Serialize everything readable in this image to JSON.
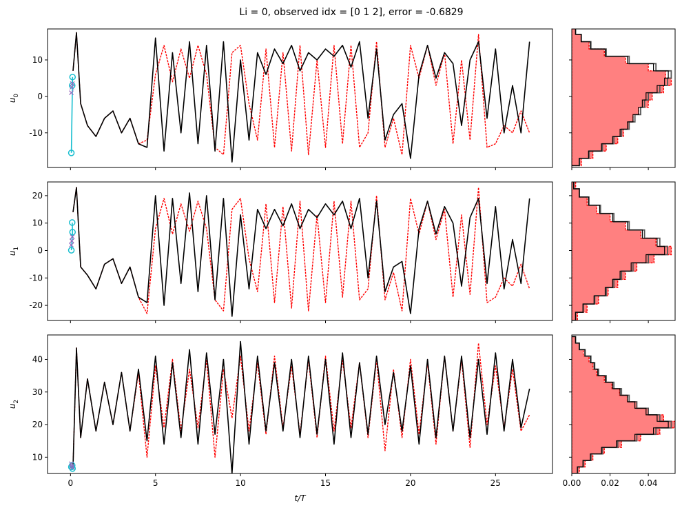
{
  "figure": {
    "title": "Li = 0, observed idx = [0 1 2], error = -0.6829"
  },
  "colors": {
    "truth": "#000000",
    "forecast": "#ff0000",
    "observed": "#17becf",
    "hist_fill": "#ff8080",
    "hist_truth": "#555555"
  },
  "chart_data": [
    {
      "type": "line",
      "ylabel": "u_0",
      "xlabel": "",
      "xlim": [
        -1.35,
        28.35
      ],
      "ylim": [
        -19.5,
        18.5
      ],
      "xticks": [
        0,
        5,
        10,
        15,
        20,
        25
      ],
      "xtick_labels": [
        "",
        "",
        "",
        "",
        "",
        ""
      ],
      "yticks": [
        -10,
        0,
        10
      ],
      "ytick_labels": [
        "-10",
        "0",
        "10"
      ],
      "observed_circles": [
        [
          0.05,
          -15.5
        ],
        [
          0.12,
          5.3
        ],
        [
          0.1,
          3.0
        ]
      ],
      "observed_crosses": [
        [
          0.05,
          1.0
        ],
        [
          0.08,
          2.5
        ],
        [
          0.11,
          3.5
        ]
      ],
      "series": [
        {
          "role": "truth",
          "style": "solid",
          "x": [
            0.15,
            0.35,
            0.6,
            1.0,
            1.5,
            2.0,
            2.5,
            3.0,
            3.5,
            4.0,
            4.5,
            5.0,
            5.5,
            6.0,
            6.5,
            7.0,
            7.5,
            8.0,
            8.5,
            9.0,
            9.5,
            10.0,
            10.5,
            11.0,
            11.5,
            12.0,
            12.5,
            13.0,
            13.5,
            14.0,
            14.5,
            15.0,
            15.5,
            16.0,
            16.5,
            17.0,
            17.5,
            18.0,
            18.5,
            19.0,
            19.5,
            20.0,
            20.5,
            21.0,
            21.5,
            22.0,
            22.5,
            23.0,
            23.5,
            24.0,
            24.5,
            25.0,
            25.5,
            26.0,
            26.5,
            27.0
          ],
          "y": [
            7,
            17.5,
            -2,
            -8,
            -11,
            -6,
            -4,
            -10,
            -6,
            -13,
            -14,
            16,
            -15,
            12,
            -10,
            15,
            -13,
            14,
            -15,
            15,
            -18,
            10,
            -12,
            12,
            6,
            13,
            9,
            14,
            7,
            12,
            10,
            13,
            11,
            14,
            8,
            15,
            -6,
            13,
            -12,
            -5,
            -2,
            -17,
            6,
            14,
            5,
            12,
            9,
            -8,
            10,
            15,
            -6,
            13,
            -10,
            3,
            -10,
            15
          ]
        },
        {
          "role": "forecast",
          "style": "dashed",
          "x": [
            0.15,
            0.35,
            0.6,
            1.0,
            1.5,
            2.0,
            2.5,
            3.0,
            3.5,
            4.0,
            4.5,
            5.0,
            5.5,
            6.0,
            6.5,
            7.0,
            7.5,
            8.0,
            8.5,
            9.0,
            9.5,
            10.0,
            10.5,
            11.0,
            11.5,
            12.0,
            12.5,
            13.0,
            13.5,
            14.0,
            14.5,
            15.0,
            15.5,
            16.0,
            16.5,
            17.0,
            17.5,
            18.0,
            18.5,
            19.0,
            19.5,
            20.0,
            20.5,
            21.0,
            21.5,
            22.0,
            22.5,
            23.0,
            23.5,
            24.0,
            24.5,
            25.0,
            25.5,
            26.0,
            26.5,
            27.0
          ],
          "y": [
            7,
            17.5,
            -2,
            -8,
            -11,
            -6,
            -4,
            -10,
            -6,
            -13,
            -12,
            6,
            14,
            4,
            13,
            5,
            14,
            6,
            -14,
            -16,
            12,
            14,
            -2,
            -12,
            13,
            -14,
            12,
            -15,
            14,
            -16,
            10,
            -14,
            14,
            -13,
            14,
            -14,
            -10,
            15,
            -14,
            -6,
            -16,
            14,
            5,
            14,
            3,
            12,
            -13,
            10,
            -12,
            17,
            -14,
            -13,
            -8,
            -10,
            -4,
            -10
          ]
        }
      ],
      "hist": {
        "xlim": [
          0,
          0.054
        ],
        "xticks": [
          0.0,
          0.02,
          0.04
        ],
        "xtick_labels": [
          "",
          "",
          ""
        ],
        "bins_center": [
          -18,
          -16,
          -14,
          -12,
          -10,
          -8,
          -6,
          -4,
          -2,
          0,
          2,
          4,
          6,
          8,
          10,
          12,
          14,
          16,
          18
        ],
        "truth": [
          0.004,
          0.009,
          0.016,
          0.022,
          0.026,
          0.03,
          0.033,
          0.036,
          0.038,
          0.04,
          0.046,
          0.05,
          0.052,
          0.044,
          0.03,
          0.018,
          0.01,
          0.005,
          0.002
        ],
        "forecast": [
          0.005,
          0.011,
          0.018,
          0.024,
          0.027,
          0.03,
          0.032,
          0.035,
          0.04,
          0.042,
          0.048,
          0.052,
          0.049,
          0.04,
          0.028,
          0.017,
          0.009,
          0.005,
          0.002
        ]
      }
    },
    {
      "type": "line",
      "ylabel": "u_1",
      "xlabel": "",
      "xlim": [
        -1.35,
        28.35
      ],
      "ylim": [
        -25.5,
        25
      ],
      "xticks": [
        0,
        5,
        10,
        15,
        20,
        25
      ],
      "xtick_labels": [
        "",
        "",
        "",
        "",
        "",
        ""
      ],
      "yticks": [
        -20,
        -10,
        0,
        10,
        20
      ],
      "ytick_labels": [
        "-20",
        "-10",
        "0",
        "10",
        "20"
      ],
      "observed_circles": [
        [
          0.1,
          10.2
        ],
        [
          0.12,
          6.7
        ],
        [
          0.05,
          0.1
        ]
      ],
      "observed_crosses": [
        [
          0.05,
          2.0
        ],
        [
          0.08,
          3.5
        ],
        [
          0.11,
          5.0
        ]
      ],
      "series": [
        {
          "role": "truth",
          "style": "solid",
          "x": [
            0.15,
            0.35,
            0.6,
            1.0,
            1.5,
            2.0,
            2.5,
            3.0,
            3.5,
            4.0,
            4.5,
            5.0,
            5.5,
            6.0,
            6.5,
            7.0,
            7.5,
            8.0,
            8.5,
            9.0,
            9.5,
            10.0,
            10.5,
            11.0,
            11.5,
            12.0,
            12.5,
            13.0,
            13.5,
            14.0,
            14.5,
            15.0,
            15.5,
            16.0,
            16.5,
            17.0,
            17.5,
            18.0,
            18.5,
            19.0,
            19.5,
            20.0,
            20.5,
            21.0,
            21.5,
            22.0,
            22.5,
            23.0,
            23.5,
            24.0,
            24.5,
            25.0,
            25.5,
            26.0,
            26.5,
            27.0
          ],
          "y": [
            14,
            23,
            -6,
            -9,
            -14,
            -5,
            -3,
            -12,
            -6,
            -17,
            -19,
            20,
            -20,
            19,
            -12,
            21,
            -15,
            20,
            -18,
            19,
            -24,
            13,
            -14,
            15,
            8,
            15,
            9,
            17,
            8,
            15,
            12,
            17,
            13,
            18,
            8,
            19,
            -10,
            18,
            -15,
            -6,
            -4,
            -23,
            8,
            18,
            6,
            16,
            10,
            -13,
            12,
            19,
            -12,
            16,
            -14,
            4,
            -12,
            19
          ]
        },
        {
          "role": "forecast",
          "style": "dashed",
          "x": [
            0.15,
            0.35,
            0.6,
            1.0,
            1.5,
            2.0,
            2.5,
            3.0,
            3.5,
            4.0,
            4.5,
            5.0,
            5.5,
            6.0,
            6.5,
            7.0,
            7.5,
            8.0,
            8.5,
            9.0,
            9.5,
            10.0,
            10.5,
            11.0,
            11.5,
            12.0,
            12.5,
            13.0,
            13.5,
            14.0,
            14.5,
            15.0,
            15.5,
            16.0,
            16.5,
            17.0,
            17.5,
            18.0,
            18.5,
            19.0,
            19.5,
            20.0,
            20.5,
            21.0,
            21.5,
            22.0,
            22.5,
            23.0,
            23.5,
            24.0,
            24.5,
            25.0,
            25.5,
            26.0,
            26.5,
            27.0
          ],
          "y": [
            14,
            23,
            -6,
            -9,
            -14,
            -5,
            -3,
            -12,
            -6,
            -17,
            -23,
            8,
            19,
            6,
            17,
            7,
            18,
            8,
            -18,
            -22,
            15,
            19,
            -3,
            -15,
            17,
            -19,
            16,
            -21,
            18,
            -22,
            13,
            -19,
            18,
            -17,
            18,
            -18,
            -14,
            20,
            -18,
            -8,
            -22,
            19,
            6,
            18,
            4,
            15,
            -17,
            13,
            -16,
            23,
            -19,
            -17,
            -10,
            -13,
            -5,
            -14
          ]
        }
      ],
      "hist": {
        "xlim": [
          0,
          0.054
        ],
        "xticks": [
          0.0,
          0.02,
          0.04
        ],
        "xtick_labels": [
          "",
          "",
          ""
        ],
        "bins_center": [
          -24,
          -21,
          -18,
          -15,
          -12,
          -9,
          -6,
          -3,
          0,
          3,
          6,
          9,
          12,
          15,
          18,
          21,
          24
        ],
        "truth": [
          0.002,
          0.006,
          0.012,
          0.018,
          0.022,
          0.026,
          0.032,
          0.04,
          0.05,
          0.046,
          0.038,
          0.03,
          0.022,
          0.015,
          0.009,
          0.004,
          0.001
        ],
        "forecast": [
          0.003,
          0.008,
          0.014,
          0.019,
          0.024,
          0.028,
          0.034,
          0.043,
          0.052,
          0.044,
          0.036,
          0.028,
          0.02,
          0.013,
          0.008,
          0.004,
          0.002
        ]
      }
    },
    {
      "type": "line",
      "ylabel": "u_2",
      "xlabel": "t/T",
      "xlim": [
        -1.35,
        28.35
      ],
      "ylim": [
        5,
        47.5
      ],
      "xticks": [
        0,
        5,
        10,
        15,
        20,
        25
      ],
      "xtick_labels": [
        "0",
        "5",
        "10",
        "15",
        "20",
        "25"
      ],
      "yticks": [
        10,
        20,
        30,
        40
      ],
      "ytick_labels": [
        "10",
        "20",
        "30",
        "40"
      ],
      "observed_circles": [
        [
          0.05,
          7.0
        ],
        [
          0.12,
          6.5
        ],
        [
          0.1,
          7.5
        ]
      ],
      "observed_crosses": [
        [
          0.05,
          8.0
        ],
        [
          0.08,
          7.2
        ],
        [
          0.11,
          6.8
        ]
      ],
      "series": [
        {
          "role": "truth",
          "style": "solid",
          "x": [
            0.15,
            0.35,
            0.6,
            1.0,
            1.5,
            2.0,
            2.5,
            3.0,
            3.5,
            4.0,
            4.5,
            5.0,
            5.5,
            6.0,
            6.5,
            7.0,
            7.5,
            8.0,
            8.5,
            9.0,
            9.5,
            10.0,
            10.5,
            11.0,
            11.5,
            12.0,
            12.5,
            13.0,
            13.5,
            14.0,
            14.5,
            15.0,
            15.5,
            16.0,
            16.5,
            17.0,
            17.5,
            18.0,
            18.5,
            19.0,
            19.5,
            20.0,
            20.5,
            21.0,
            21.5,
            22.0,
            22.5,
            23.0,
            23.5,
            24.0,
            24.5,
            25.0,
            25.5,
            26.0,
            26.5,
            27.0
          ],
          "y": [
            7,
            43.5,
            16,
            34,
            18,
            33,
            20,
            36,
            18,
            37,
            15,
            41,
            14,
            39,
            16,
            43,
            14,
            42,
            17,
            40,
            5,
            45.5,
            14,
            41,
            18,
            39,
            18,
            40,
            16,
            41,
            17,
            40,
            14,
            42,
            16,
            39,
            17,
            41,
            20,
            36,
            18,
            38,
            14,
            40,
            16,
            41,
            18,
            41,
            16,
            40,
            17,
            42,
            18,
            40,
            19,
            31
          ]
        },
        {
          "role": "forecast",
          "style": "dashed",
          "x": [
            0.15,
            0.35,
            0.6,
            1.0,
            1.5,
            2.0,
            2.5,
            3.0,
            3.5,
            4.0,
            4.5,
            5.0,
            5.5,
            6.0,
            6.5,
            7.0,
            7.5,
            8.0,
            8.5,
            9.0,
            9.5,
            10.0,
            10.5,
            11.0,
            11.5,
            12.0,
            12.5,
            13.0,
            13.5,
            14.0,
            14.5,
            15.0,
            15.5,
            16.0,
            16.5,
            17.0,
            17.5,
            18.0,
            18.5,
            19.0,
            19.5,
            20.0,
            20.5,
            21.0,
            21.5,
            22.0,
            22.5,
            23.0,
            23.5,
            24.0,
            24.5,
            25.0,
            25.5,
            26.0,
            26.5,
            27.0
          ],
          "y": [
            7,
            43.5,
            16,
            34,
            18,
            33,
            20,
            36,
            18,
            36,
            10,
            38,
            19,
            40,
            18,
            37,
            19,
            40,
            10,
            37,
            22,
            41,
            18,
            39,
            17,
            41,
            19,
            38,
            17,
            40,
            16,
            41,
            18,
            40,
            19,
            39,
            16,
            40,
            12,
            37,
            16,
            40,
            17,
            39,
            14,
            41,
            18,
            40,
            13,
            45,
            20,
            38,
            19,
            37,
            18,
            23
          ]
        }
      ],
      "hist": {
        "xlim": [
          0,
          0.054
        ],
        "xticks": [
          0.0,
          0.02,
          0.04
        ],
        "xtick_labels": [
          "0.00",
          "0.02",
          "0.04"
        ],
        "bins_center": [
          6,
          8,
          10,
          12,
          14,
          16,
          18,
          20,
          22,
          24,
          26,
          28,
          30,
          32,
          34,
          36,
          38,
          40,
          42,
          44,
          46
        ],
        "truth": [
          0.003,
          0.006,
          0.01,
          0.016,
          0.024,
          0.034,
          0.044,
          0.052,
          0.046,
          0.04,
          0.034,
          0.03,
          0.026,
          0.022,
          0.018,
          0.014,
          0.012,
          0.01,
          0.007,
          0.004,
          0.002
        ],
        "forecast": [
          0.004,
          0.007,
          0.011,
          0.017,
          0.026,
          0.036,
          0.046,
          0.054,
          0.048,
          0.04,
          0.034,
          0.029,
          0.025,
          0.021,
          0.017,
          0.013,
          0.011,
          0.009,
          0.006,
          0.004,
          0.002
        ]
      }
    }
  ]
}
